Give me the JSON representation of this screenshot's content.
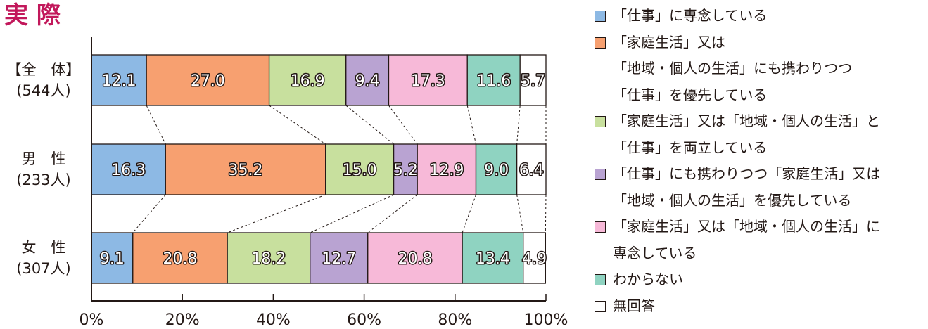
{
  "heading": "実 際",
  "chart_data": {
    "type": "bar",
    "orientation": "horizontal",
    "stacked": true,
    "categories": [
      {
        "name": "【全　体】",
        "n": "(544人)"
      },
      {
        "name": "男　性",
        "n": "(233人)"
      },
      {
        "name": "女　性",
        "n": "(307人)"
      }
    ],
    "series": [
      {
        "name": "「仕事」に専念している",
        "color": "#8db9e4",
        "values": [
          12.1,
          16.3,
          9.1
        ],
        "labels": [
          "12.1",
          "16.3",
          "9.1"
        ]
      },
      {
        "name": "「家庭生活」又は\n「地域・個人の生活」にも携わりつつ\n「仕事」を優先している",
        "color": "#f7a070",
        "values": [
          27.0,
          35.2,
          20.8
        ],
        "labels": [
          "27.0",
          "35.2",
          "20.8"
        ]
      },
      {
        "name": "「家庭生活」又は「地域・個人の生活」と\n「仕事」を両立している",
        "color": "#c8e09e",
        "values": [
          16.9,
          15.0,
          18.2
        ],
        "labels": [
          "16.9",
          "15.0",
          "18.2"
        ]
      },
      {
        "name": "「仕事」にも携わりつつ「家庭生活」又は\n「地域・個人の生活」を優先している",
        "color": "#b9a3d2",
        "values": [
          9.4,
          5.2,
          12.7
        ],
        "labels": [
          "9.4",
          "5.2",
          "12.7"
        ]
      },
      {
        "name": "「家庭生活」又は「地域・個人の生活」に\n専念している",
        "color": "#f7b9d8",
        "values": [
          17.3,
          12.9,
          20.8
        ],
        "labels": [
          "17.3",
          "12.9",
          "20.8"
        ]
      },
      {
        "name": "わからない",
        "color": "#8fd3c1",
        "values": [
          11.6,
          9.0,
          13.4
        ],
        "labels": [
          "11.6",
          "9.0",
          "13.4"
        ]
      },
      {
        "name": "無回答",
        "color": "#ffffff",
        "values": [
          5.7,
          6.4,
          4.9
        ],
        "labels": [
          "5.7",
          "6.4",
          "4.9"
        ]
      }
    ],
    "xlim": [
      0,
      100
    ],
    "x_ticks": [
      "0%",
      "20%",
      "40%",
      "60%",
      "80%",
      "100%"
    ],
    "legend_position": "right"
  }
}
